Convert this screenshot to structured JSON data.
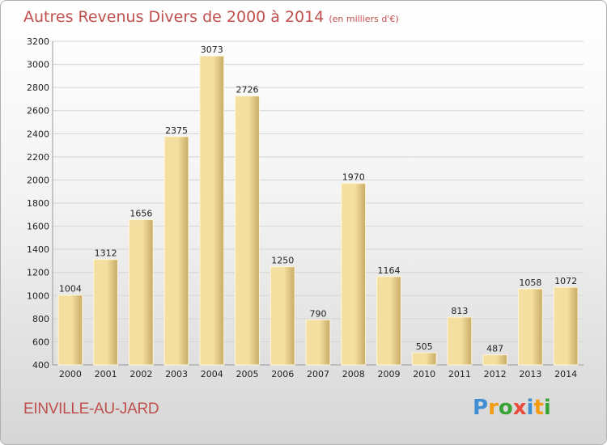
{
  "header": {
    "title": "Autres Revenus Divers de 2000 à 2014",
    "unit": "(en milliers d'€)"
  },
  "footer": {
    "town": "EINVILLE-AU-JARD",
    "brand_letters": [
      {
        "ch": "P",
        "color": "#3f8fd2"
      },
      {
        "ch": "r",
        "color": "#f39c12"
      },
      {
        "ch": "o",
        "color": "#3aa335"
      },
      {
        "ch": "x",
        "color": "#e74c3c"
      },
      {
        "ch": "i",
        "color": "#3f8fd2"
      },
      {
        "ch": "t",
        "color": "#f39c12"
      },
      {
        "ch": "i",
        "color": "#3aa335"
      }
    ]
  },
  "chart_data": {
    "type": "bar",
    "title": "Autres Revenus Divers de 2000 à 2014",
    "subtitle": "(en milliers d'€)",
    "categories": [
      "2000",
      "2001",
      "2002",
      "2003",
      "2004",
      "2005",
      "2006",
      "2007",
      "2008",
      "2009",
      "2010",
      "2011",
      "2012",
      "2013",
      "2014"
    ],
    "values": [
      1004,
      1312,
      1656,
      2375,
      3073,
      2726,
      1250,
      790,
      1970,
      1164,
      505,
      813,
      487,
      1058,
      1072
    ],
    "ylim": [
      400,
      3200
    ],
    "yticks": [
      400,
      600,
      800,
      1000,
      1200,
      1400,
      1600,
      1800,
      2000,
      2200,
      2400,
      2600,
      2800,
      3000,
      3200
    ],
    "grid": true,
    "colors": {
      "bar_light": "#f5dfa0",
      "bar_dark": "#c8ab66",
      "label": "#c0504d",
      "axis_text": "#222222"
    }
  }
}
